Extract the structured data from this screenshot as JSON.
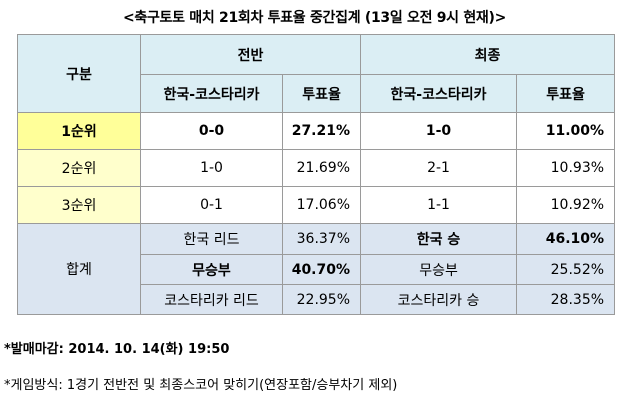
{
  "title": "<축구토토 매치 21회차 투표율 중간집계 (13일 오전 9시 현재)>",
  "table": {
    "col_category": "구분",
    "group_first_half": "전반",
    "group_final": "최종",
    "sub_score": "한국-코스타리카",
    "sub_rate": "투표율",
    "rank_rows": [
      {
        "label": "1순위",
        "half_score": "0-0",
        "half_rate": "27.21%",
        "final_score": "1-0",
        "final_rate": "11.00%"
      },
      {
        "label": "2순위",
        "half_score": "1-0",
        "half_rate": "21.69%",
        "final_score": "2-1",
        "final_rate": "10.93%"
      },
      {
        "label": "3순위",
        "half_score": "0-1",
        "half_rate": "17.06%",
        "final_score": "1-1",
        "final_rate": "10.92%"
      }
    ],
    "total_label": "합계",
    "total_rows": [
      {
        "half_label": "한국 리드",
        "half_rate": "36.37%",
        "final_label": "한국 승",
        "final_rate": "46.10%"
      },
      {
        "half_label": "무승부",
        "half_rate": "40.70%",
        "final_label": "무승부",
        "final_rate": "25.52%"
      },
      {
        "half_label": "코스타리카 리드",
        "half_rate": "22.95%",
        "final_label": "코스타리카 승",
        "final_rate": "28.35%"
      }
    ]
  },
  "notes": {
    "deadline": "*발매마감: 2014. 10. 14(화) 19:50",
    "method": "*게임방식: 1경기 전반전 및 최종스코어 맞히기(연장포함/승부차기 제외)"
  },
  "colors": {
    "header_bg": "#dbeef4",
    "first_rank_bg": "#ffff99",
    "rank_label_bg": "#ffffcc",
    "total_bg": "#dbe5f1",
    "border": "#9a9a9a"
  }
}
